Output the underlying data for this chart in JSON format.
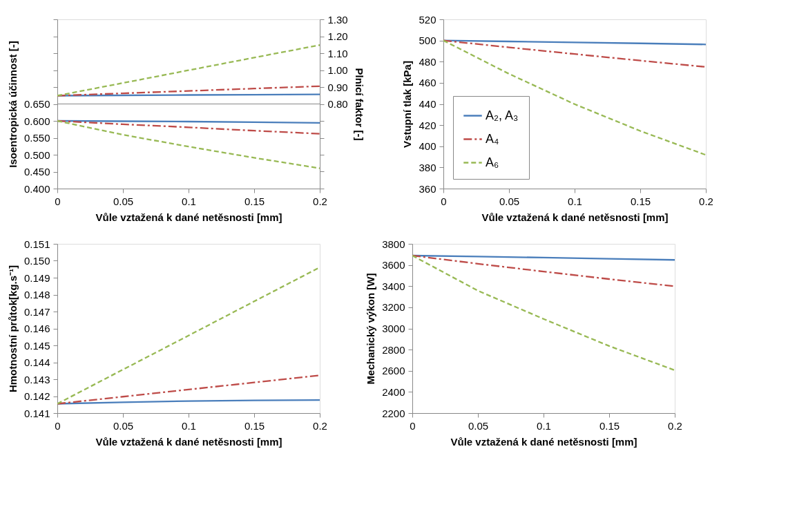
{
  "chart_data": [
    {
      "type": "line",
      "x": [
        0,
        0.05,
        0.1,
        0.15,
        0.2
      ],
      "xlim": [
        0,
        0.2
      ],
      "xticks": [
        0,
        0.05,
        0.1,
        0.15,
        0.2
      ],
      "xlabel": "Vůle vztažená k dané netěsnosti [mm]",
      "ylabel": "Isoentropická účinnost [-]",
      "y2label": "Plnicí faktor [-]",
      "ylim": [
        0.4,
        0.9
      ],
      "yticks": [
        {
          "value": 0.4,
          "label": "0.400"
        },
        {
          "value": 0.45,
          "label": "0.450"
        },
        {
          "value": 0.5,
          "label": "0.500"
        },
        {
          "value": 0.55,
          "label": "0.550"
        },
        {
          "value": 0.6,
          "label": "0.600"
        },
        {
          "value": 0.65,
          "label": "0.650"
        },
        {
          "value": 0.7,
          "label": null
        },
        {
          "value": 0.75,
          "label": null
        },
        {
          "value": 0.8,
          "label": null
        },
        {
          "value": 0.85,
          "label": null
        },
        {
          "value": 0.9,
          "label": null
        }
      ],
      "y2lim": [
        0.3,
        1.3
      ],
      "y2ticks": [
        {
          "value": 0.3,
          "label": null
        },
        {
          "value": 0.4,
          "label": null
        },
        {
          "value": 0.5,
          "label": null
        },
        {
          "value": 0.6,
          "label": null
        },
        {
          "value": 0.7,
          "label": null
        },
        {
          "value": 0.8,
          "label": "0.80"
        },
        {
          "value": 0.9,
          "label": "0.90"
        },
        {
          "value": 1.0,
          "label": "1.00"
        },
        {
          "value": 1.1,
          "label": "1.10"
        },
        {
          "value": 1.2,
          "label": "1.20"
        },
        {
          "value": 1.3,
          "label": "1.30"
        }
      ],
      "ref_lines": [
        {
          "axis": "y",
          "value": 0.65,
          "color": "#888888"
        }
      ],
      "series": [
        {
          "color": "#4a7ebb",
          "line_style": "solid",
          "values": [
            0.6,
            0.599,
            0.598,
            0.596,
            0.594
          ]
        },
        {
          "color": "#be4b48",
          "line_style": "dashdot",
          "values": [
            0.6,
            0.59,
            0.581,
            0.571,
            0.562
          ]
        },
        {
          "color": "#98b954",
          "line_style": "dashed",
          "values": [
            0.6,
            0.559,
            0.524,
            0.491,
            0.46
          ]
        },
        {
          "color": "#4a7ebb",
          "line_style": "solid",
          "axis": "y2",
          "values": [
            0.849,
            0.851,
            0.853,
            0.855,
            0.857
          ]
        },
        {
          "color": "#be4b48",
          "line_style": "dashdot",
          "axis": "y2",
          "values": [
            0.849,
            0.863,
            0.877,
            0.891,
            0.905
          ]
        },
        {
          "color": "#98b954",
          "line_style": "dashed",
          "axis": "y2",
          "values": [
            0.849,
            0.924,
            0.999,
            1.074,
            1.148
          ]
        }
      ]
    },
    {
      "type": "line",
      "x": [
        0,
        0.05,
        0.1,
        0.15,
        0.2
      ],
      "xlim": [
        0,
        0.2
      ],
      "xticks": [
        0,
        0.05,
        0.1,
        0.15,
        0.2
      ],
      "xlabel": "Vůle vztažená k dané netěsnosti [mm]",
      "ylabel": "Vstupní tlak [kPa]",
      "ylim": [
        360,
        520
      ],
      "yticks": [
        360,
        380,
        400,
        420,
        440,
        460,
        480,
        500,
        520
      ],
      "legend": "bottom left",
      "series": [
        {
          "name": "A₂, A₃",
          "color": "#4a7ebb",
          "line_style": "solid",
          "values": [
            500,
            499.1,
            498.2,
            497.3,
            496.3
          ]
        },
        {
          "name": "A₄",
          "color": "#be4b48",
          "line_style": "dashdot",
          "values": [
            500,
            493.5,
            487.2,
            481,
            475
          ]
        },
        {
          "name": "A₆",
          "color": "#98b954",
          "line_style": "dashed",
          "values": [
            500,
            468.5,
            439.8,
            414.5,
            391.8
          ]
        }
      ]
    },
    {
      "type": "line",
      "x": [
        0,
        0.05,
        0.1,
        0.15,
        0.2
      ],
      "xlim": [
        0,
        0.2
      ],
      "xticks": [
        0,
        0.05,
        0.1,
        0.15,
        0.2
      ],
      "xlabel": "Vůle vztažená k dané netěsnosti [mm]",
      "ylabel": "Hmotnostní průtok[kg.s⁻¹]",
      "ylim": [
        0.141,
        0.151
      ],
      "yticks": [
        0.141,
        0.142,
        0.143,
        0.144,
        0.145,
        0.146,
        0.147,
        0.148,
        0.149,
        {
          "value": 0.15,
          "label": "0.150"
        },
        0.151
      ],
      "series": [
        {
          "color": "#4a7ebb",
          "line_style": "solid",
          "values": [
            0.14155,
            0.14164,
            0.14171,
            0.14175,
            0.14177
          ]
        },
        {
          "color": "#be4b48",
          "line_style": "dashdot",
          "values": [
            0.14155,
            0.14197,
            0.14239,
            0.14281,
            0.14323
          ]
        },
        {
          "color": "#98b954",
          "line_style": "dashed",
          "values": [
            0.14155,
            0.14357,
            0.14558,
            0.1476,
            0.14961
          ]
        }
      ]
    },
    {
      "type": "line",
      "x": [
        0,
        0.05,
        0.1,
        0.15,
        0.2
      ],
      "xlim": [
        0,
        0.2
      ],
      "xticks": [
        0,
        0.05,
        0.1,
        0.15,
        0.2
      ],
      "xlabel": "Vůle vztažená k dané netěsnosti [mm]",
      "ylabel": "Mechanický výkon [W]",
      "ylim": [
        2200,
        3800
      ],
      "yticks": [
        2200,
        2400,
        2600,
        2800,
        3000,
        3200,
        3400,
        3600,
        3800
      ],
      "series": [
        {
          "color": "#4a7ebb",
          "line_style": "solid",
          "values": [
            3689,
            3680,
            3670,
            3659,
            3648
          ]
        },
        {
          "color": "#be4b48",
          "line_style": "dashdot",
          "values": [
            3689,
            3612,
            3538,
            3467,
            3399
          ]
        },
        {
          "color": "#98b954",
          "line_style": "dashed",
          "values": [
            3689,
            3357,
            3090,
            2834,
            2605
          ]
        }
      ]
    }
  ]
}
